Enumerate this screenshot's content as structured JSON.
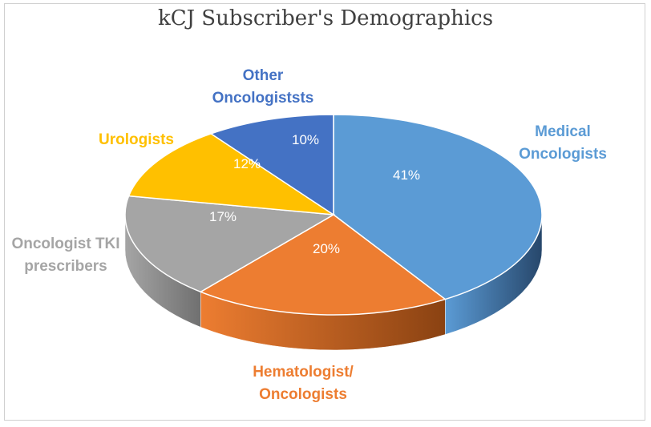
{
  "chart_data": {
    "type": "pie",
    "title": "kCJ Subscriber's Demographics",
    "slices": [
      {
        "label_lines": [
          "Medical",
          "Oncologists"
        ],
        "value_label": "41%",
        "value": 41,
        "color": "#5b9bd5",
        "side": "#27476b"
      },
      {
        "label_lines": [
          "Hematologist/",
          "Oncologists"
        ],
        "value_label": "20%",
        "value": 20,
        "color": "#ed7d31",
        "side": "#8a4212"
      },
      {
        "label_lines": [
          "Oncologist TKI",
          "prescribers"
        ],
        "value_label": "17%",
        "value": 17,
        "color": "#a5a5a5",
        "side": "#707070"
      },
      {
        "label_lines": [
          "Urologists"
        ],
        "value_label": "12%",
        "value": 12,
        "color": "#ffc000",
        "side": "#a07a00"
      },
      {
        "label_lines": [
          "Other",
          "Oncologiststs"
        ],
        "value_label": "10%",
        "value": 10,
        "color": "#4472c4",
        "side": "#2a4a82"
      }
    ],
    "legend": "none",
    "style": "3d-pie"
  }
}
